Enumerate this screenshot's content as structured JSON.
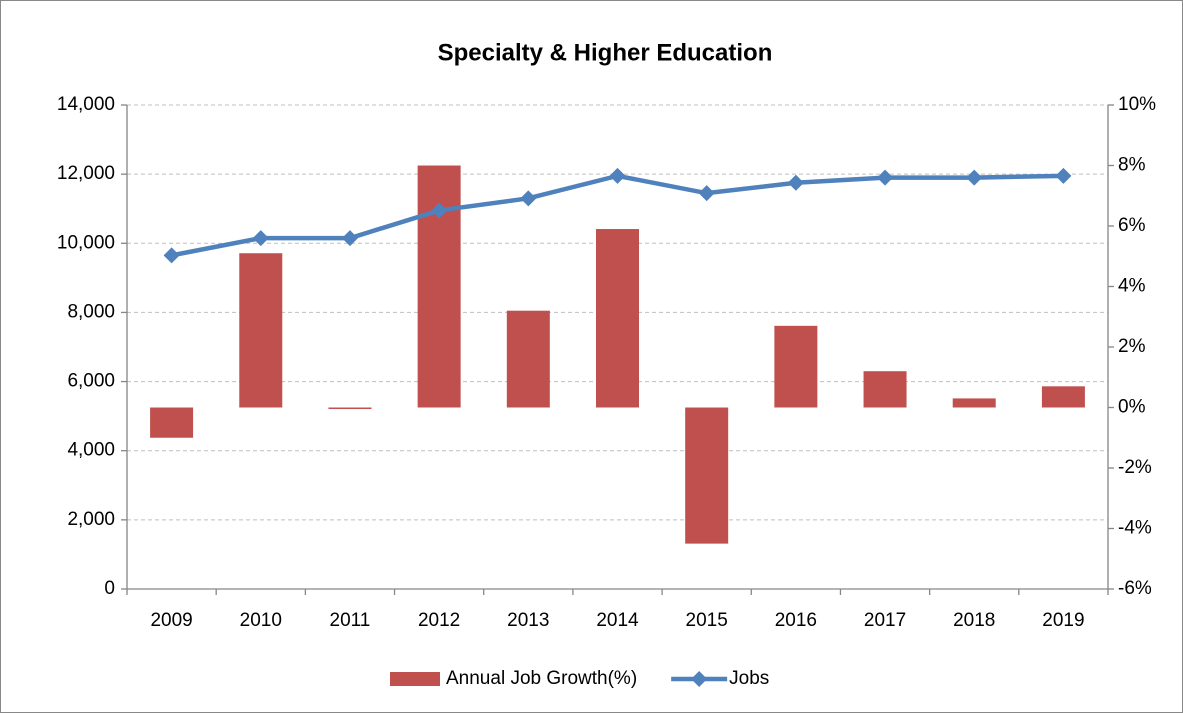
{
  "chart_data": {
    "type": "bar_line",
    "title": "Specialty & Higher Education",
    "categories": [
      "2009",
      "2010",
      "2011",
      "2012",
      "2013",
      "2014",
      "2015",
      "2016",
      "2017",
      "2018",
      "2019"
    ],
    "series": [
      {
        "name": "Annual Job Growth(%)",
        "type": "bar",
        "axis": "y2",
        "color": "#c0504d",
        "values": [
          -1.0,
          5.1,
          -0.05,
          8.0,
          3.2,
          5.9,
          -4.5,
          2.7,
          1.2,
          0.3,
          0.7
        ]
      },
      {
        "name": "Jobs",
        "type": "line",
        "axis": "y",
        "color": "#4f81bd",
        "values": [
          9650,
          10150,
          10150,
          10950,
          11300,
          11950,
          11450,
          11750,
          11900,
          11900,
          11950
        ]
      }
    ],
    "ylim": [
      0,
      14000
    ],
    "yticks": [
      0,
      {
        "value": 2000,
        "label": "2,000"
      },
      {
        "value": 4000,
        "label": "4,000"
      },
      {
        "value": 6000,
        "label": "6,000"
      },
      {
        "value": 8000,
        "label": "8,000"
      },
      {
        "value": 10000,
        "label": "10,000"
      },
      {
        "value": 12000,
        "label": "12,000"
      },
      {
        "value": 14000,
        "label": "14,000"
      }
    ],
    "y2lim": [
      -6,
      10
    ],
    "y2ticks": [
      {
        "value": -6,
        "label": "-6%"
      },
      {
        "value": -4,
        "label": "-4%"
      },
      {
        "value": -2,
        "label": "-2%"
      },
      {
        "value": 0,
        "label": "0%"
      },
      {
        "value": 2,
        "label": "2%"
      },
      {
        "value": 4,
        "label": "4%"
      },
      {
        "value": 6,
        "label": "6%"
      },
      {
        "value": 8,
        "label": "8%"
      },
      {
        "value": 10,
        "label": "10%"
      }
    ],
    "grid": true,
    "legend": "bottom"
  }
}
